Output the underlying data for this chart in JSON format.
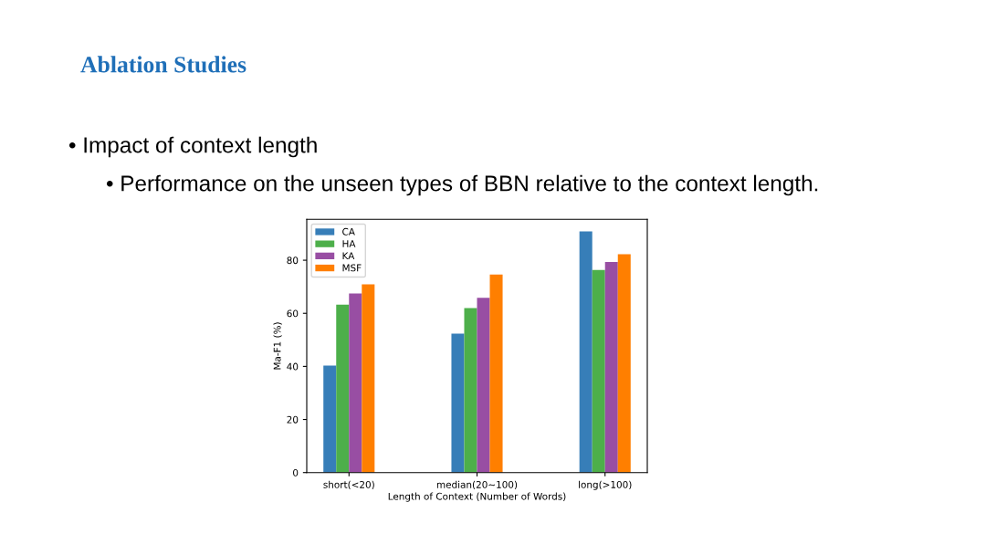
{
  "chart_data": {
    "type": "bar",
    "title": "Ablation Studies",
    "subtitle": "• Impact of context length",
    "annotations": [
      "• Performance on the unseen types of BBN relative to the context length."
    ],
    "categories": [
      "short(<20)",
      "median(20~100)",
      "long(>100)"
    ],
    "series": [
      {
        "name": "CA",
        "color": "#377eb8",
        "values": [
          40.3,
          52.3,
          90.9
        ]
      },
      {
        "name": "HA",
        "color": "#4daf4a",
        "values": [
          63.3,
          62.0,
          76.3
        ]
      },
      {
        "name": "KA",
        "color": "#984ea3",
        "values": [
          67.5,
          65.8,
          79.3
        ]
      },
      {
        "name": "MSF",
        "color": "#ff7f00",
        "values": [
          70.9,
          74.6,
          82.3
        ]
      }
    ],
    "xlabel": "Length of Context (Number of Words)",
    "ylabel": "Ma-F1 (%)",
    "ylim": [
      0,
      95.4
    ],
    "yticks": [
      0,
      20,
      40,
      60,
      80
    ],
    "grid": false,
    "legend": "top left"
  }
}
